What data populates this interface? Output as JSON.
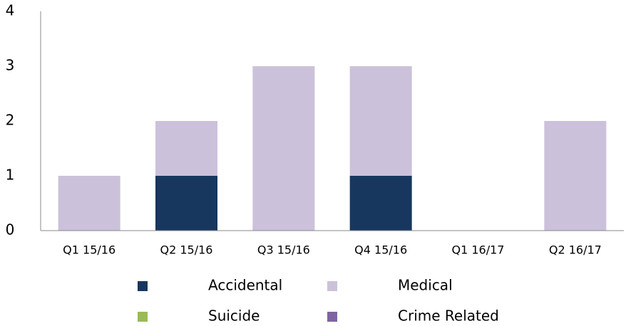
{
  "chart_data": {
    "type": "bar",
    "stacked": true,
    "categories": [
      "Q1 15/16",
      "Q2 15/16",
      "Q3 15/16",
      "Q4 15/16",
      "Q1 16/17",
      "Q2 16/17"
    ],
    "series": [
      {
        "name": "Accidental",
        "color": "#17375e",
        "values": [
          0,
          1,
          0,
          1,
          0,
          0
        ]
      },
      {
        "name": "Medical",
        "color": "#ccc1da",
        "values": [
          1,
          1,
          3,
          2,
          0,
          2
        ]
      },
      {
        "name": "Suicide",
        "color": "#9bbb59",
        "values": [
          0,
          0,
          0,
          0,
          0,
          0
        ]
      },
      {
        "name": "Crime Related",
        "color": "#8064a2",
        "values": [
          0,
          0,
          0,
          0,
          0,
          0
        ]
      }
    ],
    "ylim": [
      0,
      4
    ],
    "yticks": [
      0,
      1,
      2,
      3,
      4
    ],
    "grid": false,
    "legend": "bottom"
  }
}
